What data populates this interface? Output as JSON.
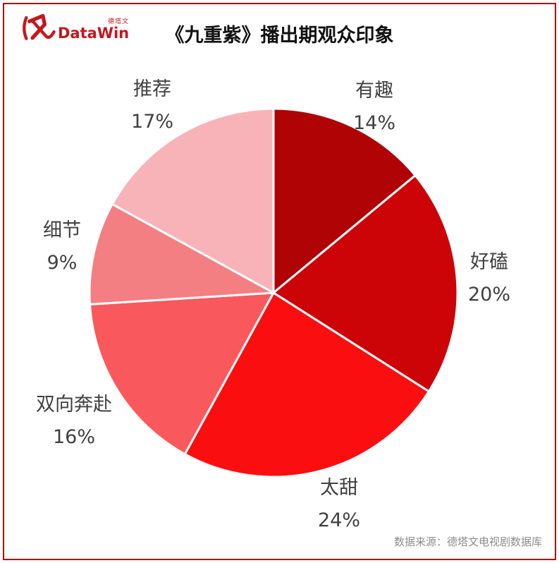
{
  "page": {
    "title": "《九重紫》播出期观众印象",
    "source": "数据来源：德塔文电视剧数据库",
    "background_color": "#FFFFFF",
    "frame_color": "#B2070C",
    "label_color": "#404040"
  },
  "logo": {
    "brand": "DataWin",
    "brand_cn": "德塔文",
    "color": "#C5161D"
  },
  "chart_data": {
    "type": "pie",
    "title": "《九重紫》播出期观众印象",
    "start_angle_deg": 0,
    "direction": "clockwise",
    "total": 100,
    "legend_position": "outside-labels",
    "slice_divider_color": "#FFFFFF",
    "slices": [
      {
        "label": "有趣",
        "value": 14,
        "pct": "14%",
        "color": "#AF0306"
      },
      {
        "label": "好磕",
        "value": 20,
        "pct": "20%",
        "color": "#CC0408"
      },
      {
        "label": "太甜",
        "value": 24,
        "pct": "24%",
        "color": "#FB0E0F"
      },
      {
        "label": "双向奔赴",
        "value": 16,
        "pct": "16%",
        "color": "#F9595C"
      },
      {
        "label": "细节",
        "value": 9,
        "pct": "9%",
        "color": "#F37F83"
      },
      {
        "label": "推荐",
        "value": 17,
        "pct": "17%",
        "color": "#F8B3B9"
      }
    ]
  }
}
